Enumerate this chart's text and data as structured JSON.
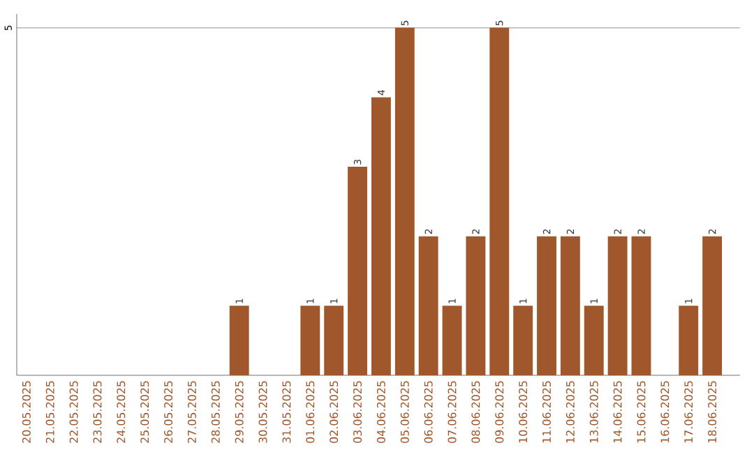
{
  "chart_data": {
    "type": "bar",
    "categories": [
      "20.05.2025",
      "21.05.2025",
      "22.05.2025",
      "23.05.2025",
      "24.05.2025",
      "25.05.2025",
      "26.05.2025",
      "27.05.2025",
      "28.05.2025",
      "29.05.2025",
      "30.05.2025",
      "31.05.2025",
      "01.06.2025",
      "02.06.2025",
      "03.06.2025",
      "04.06.2025",
      "05.06.2025",
      "06.06.2025",
      "07.06.2025",
      "08.06.2025",
      "09.06.2025",
      "10.06.2025",
      "11.06.2025",
      "12.06.2025",
      "13.06.2025",
      "14.06.2025",
      "15.06.2025",
      "16.06.2025",
      "17.06.2025",
      "18.06.2025"
    ],
    "values": [
      0,
      0,
      0,
      0,
      0,
      0,
      0,
      0,
      0,
      1,
      0,
      0,
      1,
      1,
      3,
      4,
      5,
      2,
      1,
      2,
      5,
      1,
      2,
      2,
      1,
      2,
      2,
      0,
      1,
      2
    ],
    "value_labels": [
      null,
      null,
      null,
      null,
      null,
      null,
      null,
      null,
      null,
      "1",
      null,
      null,
      "1",
      "1",
      "3",
      "4",
      "5",
      "2",
      "1",
      "2",
      "5",
      "1",
      "2",
      "2",
      "1",
      "2",
      "2",
      null,
      "1",
      "2"
    ],
    "color": "#a0572b",
    "ylim": [
      0,
      5.2
    ],
    "yticks": [
      5
    ],
    "grid": "y"
  }
}
